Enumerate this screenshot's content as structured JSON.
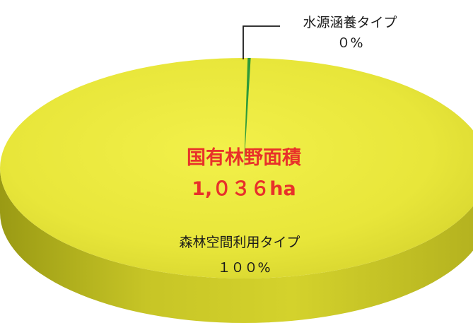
{
  "chart_data": {
    "type": "pie",
    "center_label": {
      "title": "国有林野面積",
      "value": "1,０３６ha"
    },
    "slices": [
      {
        "name": "森林空間利用タイプ",
        "percent_label": "１００%",
        "value": 99.8,
        "color": "#e6e43a"
      },
      {
        "name": "水源涵養タイプ",
        "percent_label": "０%",
        "value": 0.2,
        "color": "#2e9a3a"
      }
    ],
    "colors": {
      "center_text": "#e8312a",
      "label_text": "#1a1a1a",
      "leader_line": "#1a1a1a"
    }
  }
}
